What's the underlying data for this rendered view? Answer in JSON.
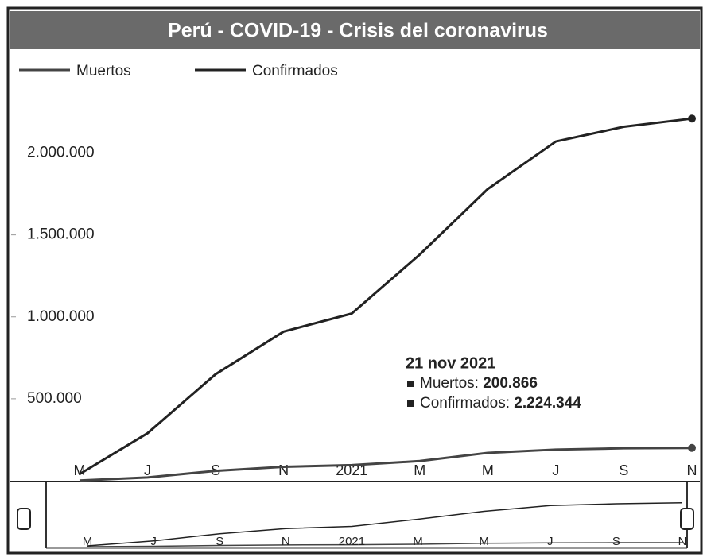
{
  "chart_data": {
    "type": "line",
    "title": "Perú - COVID-19 - Crisis del coronavirus",
    "categories": [
      "M",
      "J",
      "S",
      "N",
      "2021",
      "M",
      "M",
      "J",
      "S",
      "N"
    ],
    "series": [
      {
        "name": "Muertos",
        "color": "#444444",
        "values": [
          1000,
          20000,
          60000,
          85000,
          95000,
          120000,
          170000,
          190000,
          198000,
          200000
        ]
      },
      {
        "name": "Confirmados",
        "color": "#222222",
        "values": [
          40000,
          290000,
          650000,
          910000,
          1020000,
          1380000,
          1780000,
          2070000,
          2160000,
          2210000
        ]
      }
    ],
    "ylim": [
      0,
      2400000
    ],
    "yticks": [
      {
        "value": 500000,
        "label": "500.000"
      },
      {
        "value": 1000000,
        "label": "1.000.000"
      },
      {
        "value": 1500000,
        "label": "1.500.000"
      },
      {
        "value": 2000000,
        "label": "2.000.000"
      }
    ],
    "grid": false,
    "annotation": {
      "date": "21 nov 2021",
      "items": [
        {
          "label": "Muertos:",
          "value": "200.866"
        },
        {
          "label": "Confirmados:",
          "value": "2.224.344"
        }
      ]
    }
  }
}
